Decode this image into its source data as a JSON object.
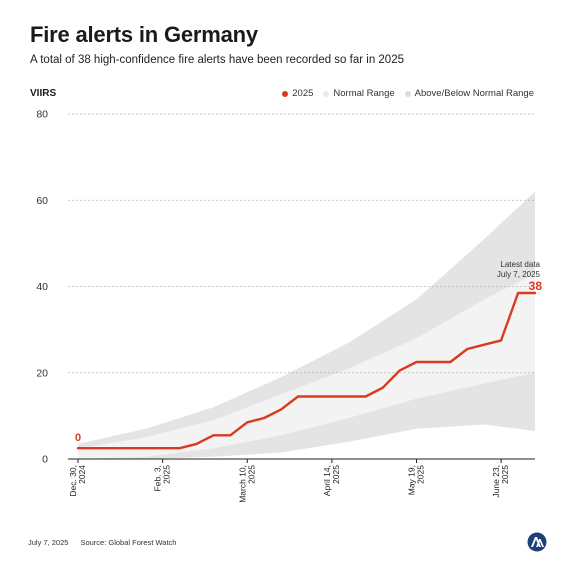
{
  "header": {
    "title": "Fire alerts in Germany",
    "subtitle": "A total of 38 high-confidence fire alerts have been recorded so far in 2025",
    "unit": "VIIRS"
  },
  "legend": [
    {
      "label": "2025",
      "color": "#d93a20"
    },
    {
      "label": "Normal Range",
      "color": "#ebebeb"
    },
    {
      "label": "Above/Below Normal Range",
      "color": "#dcdcdc"
    }
  ],
  "annotation": {
    "start_label": "0",
    "latest_line1": "Latest data",
    "latest_line2": "July 7, 2025",
    "latest_value": "38"
  },
  "footer": {
    "date": "July 7, 2025",
    "source": "Source: Global Forest Watch"
  },
  "chart_data": {
    "type": "area",
    "ylabel": "VIIRS",
    "ylim": [
      0,
      80
    ],
    "yticks": [
      0,
      20,
      40,
      60,
      80
    ],
    "xlim": [
      "2024-12-30",
      "2025-07-07"
    ],
    "xticks": [
      {
        "date": "2024-12-30",
        "line1": "Dec. 30,",
        "line2": "2024"
      },
      {
        "date": "2025-02-03",
        "line1": "Feb. 3,",
        "line2": "2025"
      },
      {
        "date": "2025-03-10",
        "line1": "March 10,",
        "line2": "2025"
      },
      {
        "date": "2025-04-14",
        "line1": "April 14,",
        "line2": "2025"
      },
      {
        "date": "2025-05-19",
        "line1": "May 19,",
        "line2": "2025"
      },
      {
        "date": "2025-06-23",
        "line1": "June 23,",
        "line2": "2025"
      }
    ],
    "series": [
      {
        "name": "2025",
        "color": "#d93a20",
        "points": [
          [
            "2024-12-30",
            2.5
          ],
          [
            "2025-01-06",
            2.5
          ],
          [
            "2025-01-13",
            2.5
          ],
          [
            "2025-01-20",
            2.5
          ],
          [
            "2025-01-27",
            2.5
          ],
          [
            "2025-02-03",
            2.5
          ],
          [
            "2025-02-10",
            2.5
          ],
          [
            "2025-02-17",
            3.5
          ],
          [
            "2025-02-24",
            5.5
          ],
          [
            "2025-03-03",
            5.5
          ],
          [
            "2025-03-10",
            8.5
          ],
          [
            "2025-03-17",
            9.5
          ],
          [
            "2025-03-24",
            11.5
          ],
          [
            "2025-03-31",
            14.5
          ],
          [
            "2025-04-07",
            14.5
          ],
          [
            "2025-04-14",
            14.5
          ],
          [
            "2025-04-21",
            14.5
          ],
          [
            "2025-04-28",
            14.5
          ],
          [
            "2025-05-05",
            16.5
          ],
          [
            "2025-05-12",
            20.5
          ],
          [
            "2025-05-19",
            22.5
          ],
          [
            "2025-05-26",
            22.5
          ],
          [
            "2025-06-02",
            22.5
          ],
          [
            "2025-06-09",
            25.5
          ],
          [
            "2025-06-16",
            26.5
          ],
          [
            "2025-06-23",
            27.5
          ],
          [
            "2025-06-30",
            38.5
          ],
          [
            "2025-07-07",
            38.5
          ]
        ]
      }
    ],
    "bands": [
      {
        "name": "Above/Below Normal Range",
        "color": "#e4e4e4",
        "x": [
          "2024-12-30",
          "2025-01-27",
          "2025-02-24",
          "2025-03-24",
          "2025-04-21",
          "2025-05-19",
          "2025-06-16",
          "2025-07-07"
        ],
        "upper": [
          3.5,
          7,
          12,
          19,
          27,
          37,
          51,
          62
        ],
        "lower": [
          0,
          0,
          0.5,
          1.5,
          4,
          7,
          8,
          6.5
        ]
      },
      {
        "name": "Normal Range",
        "color": "#f3f3f3",
        "x": [
          "2024-12-30",
          "2025-01-27",
          "2025-02-24",
          "2025-03-24",
          "2025-04-21",
          "2025-05-19",
          "2025-06-16",
          "2025-07-07"
        ],
        "upper": [
          2.5,
          5,
          9,
          15,
          21,
          28,
          37,
          43
        ],
        "lower": [
          0,
          0.5,
          2.5,
          5.5,
          9.5,
          14,
          17.5,
          20
        ]
      }
    ]
  }
}
